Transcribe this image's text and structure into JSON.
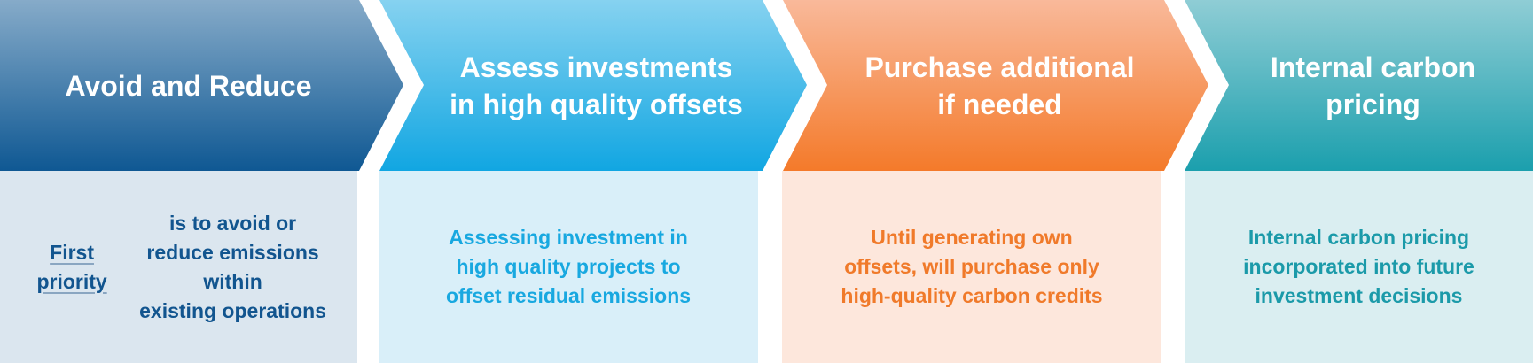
{
  "steps": [
    {
      "title": "Avoid and Reduce",
      "desc_emph": "First priority",
      "desc_rest": " is to avoid or\nreduce emissions within\nexisting operations",
      "text_color": "#12558f",
      "box_color": "#dbe6ef",
      "head_top": "#86abc9",
      "head_bottom": "#0f5893"
    },
    {
      "title": "Assess investments\nin high quality offsets",
      "desc": "Assessing investment in\nhigh quality projects to\noffset residual emissions",
      "text_color": "#18a8e0",
      "box_color": "#d9eff9",
      "head_top": "#86d2f0",
      "head_bottom": "#11a6e2"
    },
    {
      "title": "Purchase additional\nif needed",
      "desc": "Until generating own\noffsets, will purchase only\nhigh-quality carbon credits",
      "text_color": "#f07a2a",
      "box_color": "#fde7dc",
      "head_top": "#f9b99a",
      "head_bottom": "#f47a2a"
    },
    {
      "title": "Internal carbon\npricing",
      "desc": "Internal carbon pricing\nincorporated into future\ninvestment decisions",
      "text_color": "#1b9aa9",
      "box_color": "#daeef1",
      "head_top": "#8fcdd5",
      "head_bottom": "#1b9fad"
    }
  ]
}
